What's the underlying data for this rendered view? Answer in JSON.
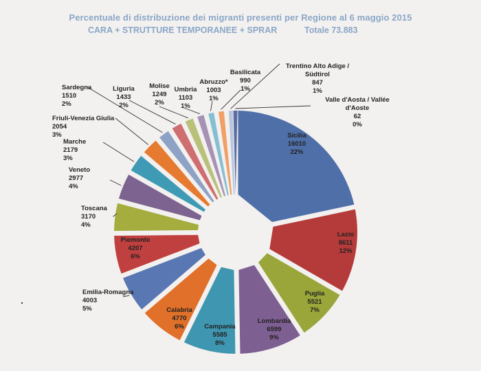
{
  "chart_data": {
    "type": "pie",
    "title": "Percentuale di distribuzione dei migranti presenti per Regione al 6 maggio 2015",
    "subtitle": "CARA + STRUTTURE TEMPORANEE + SPRAR",
    "total_label": "Totale 73.883",
    "slices": [
      {
        "label": "Sicilia",
        "value": 16010,
        "percent": "22%",
        "color": "#4f6fa8"
      },
      {
        "label": "Lazio",
        "value": 8611,
        "percent": "12%",
        "color": "#b53a3a"
      },
      {
        "label": "Puglia",
        "value": 5521,
        "percent": "7%",
        "color": "#9aa63a"
      },
      {
        "label": "Lombardia",
        "value": 6599,
        "percent": "9%",
        "color": "#7e5f92"
      },
      {
        "label": "Campania",
        "value": 5585,
        "percent": "8%",
        "color": "#3f96b0"
      },
      {
        "label": "Calabria",
        "value": 4770,
        "percent": "6%",
        "color": "#e0702a"
      },
      {
        "label": "Emilia-Romagna",
        "value": 4003,
        "percent": "5%",
        "color": "#5977b3"
      },
      {
        "label": "Piemonte",
        "value": 4207,
        "percent": "6%",
        "color": "#c0403f"
      },
      {
        "label": "Toscana",
        "value": 3170,
        "percent": "4%",
        "color": "#a4ad3e"
      },
      {
        "label": "Veneto",
        "value": 2977,
        "percent": "4%",
        "color": "#7c6390"
      },
      {
        "label": "Marche",
        "value": 2179,
        "percent": "3%",
        "color": "#3f9bb5"
      },
      {
        "label": "Friuli-Venezia Giulia",
        "value": 2054,
        "percent": "3%",
        "color": "#e67a30"
      },
      {
        "label": "Sardegna",
        "value": 1510,
        "percent": "2%",
        "color": "#8ea2c6"
      },
      {
        "label": "Liguria",
        "value": 1433,
        "percent": "2%",
        "color": "#cf6e70"
      },
      {
        "label": "Molise",
        "value": 1249,
        "percent": "2%",
        "color": "#b9c07a"
      },
      {
        "label": "Umbria",
        "value": 1103,
        "percent": "1%",
        "color": "#a692b5"
      },
      {
        "label": "Abruzzo*",
        "value": 1003,
        "percent": "1%",
        "color": "#85bfd2"
      },
      {
        "label": "Basilicata",
        "value": 990,
        "percent": "1%",
        "color": "#f0a066"
      },
      {
        "label": "Trentino Alto Adige / Südtirol",
        "value": 847,
        "percent": "1%",
        "color": "#b9c6de"
      },
      {
        "label": "Valle d'Aosta / Vallée d'Aoste",
        "value": 62,
        "percent": "0%",
        "color": "#5b6ea4"
      }
    ]
  }
}
